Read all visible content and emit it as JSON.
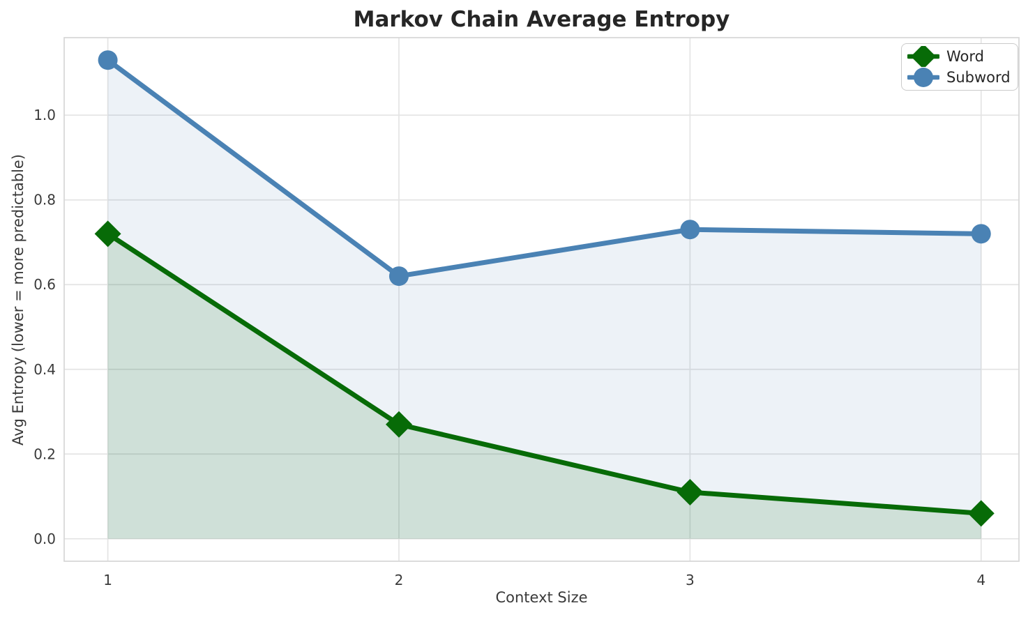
{
  "figure": {
    "background": "#ffffff",
    "text_color": "#262626",
    "tick_color": "#3a3a3a",
    "grid_color": "#e4e4e4",
    "spine_color": "#d6d6d6"
  },
  "chart_data": {
    "type": "line",
    "title": "Markov Chain Average Entropy",
    "xlabel": "Context Size",
    "ylabel": "Avg Entropy (lower = more predictable)",
    "x": [
      1,
      2,
      3,
      4
    ],
    "series": [
      {
        "name": "Word",
        "values": [
          0.72,
          0.27,
          0.11,
          0.06
        ],
        "color": "#076b07",
        "marker": "diamond",
        "fill_opacity": 0.13
      },
      {
        "name": "Subword",
        "values": [
          1.13,
          0.62,
          0.73,
          0.72
        ],
        "color": "#4a82b4",
        "marker": "circle",
        "fill_opacity": 0.1
      }
    ],
    "xticks": [
      1,
      2,
      3,
      4
    ],
    "xtick_labels": [
      "1",
      "2",
      "3",
      "4"
    ],
    "yticks": [
      0.0,
      0.2,
      0.4,
      0.6,
      0.8,
      1.0
    ],
    "ytick_labels": [
      "0.0",
      "0.2",
      "0.4",
      "0.6",
      "0.8",
      "1.0"
    ],
    "xlim": [
      0.85,
      4.13
    ],
    "ylim": [
      -0.053,
      1.183
    ],
    "grid": true,
    "area_fill": true,
    "fill_baseline": 0,
    "legend_position": "top-right"
  }
}
